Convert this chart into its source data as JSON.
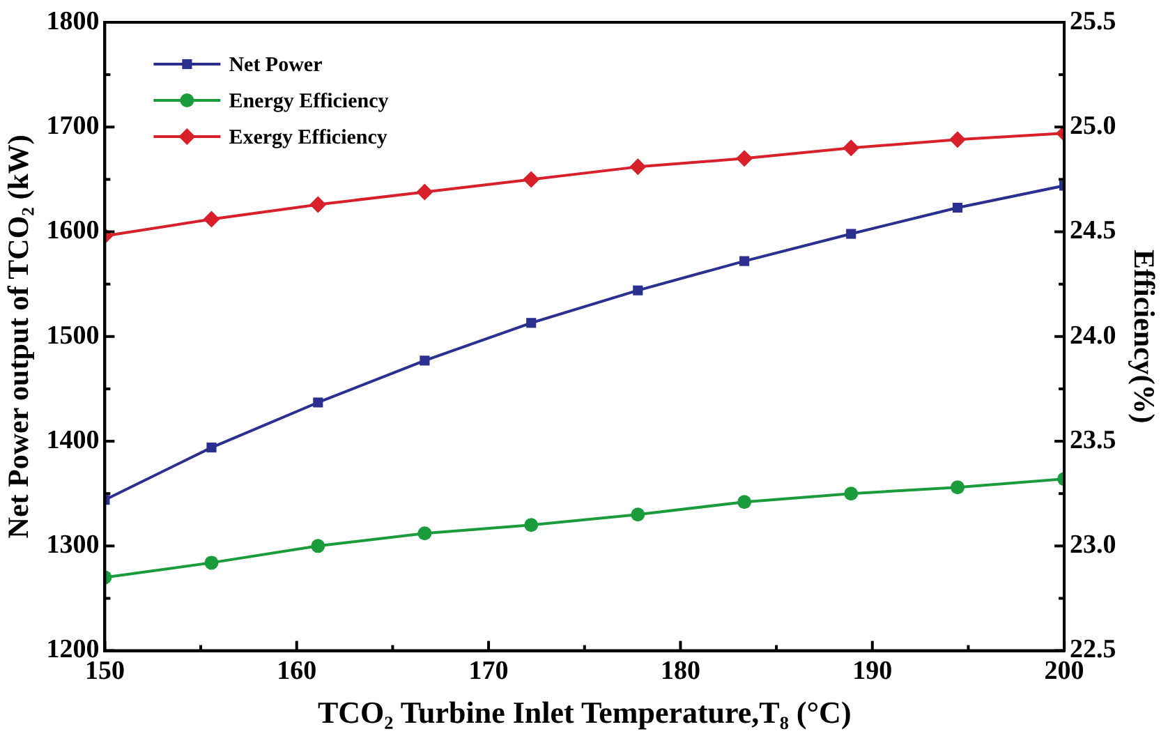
{
  "chart_data": {
    "type": "line",
    "xlabel": "TCO₂ Turbine Inlet Temperature,T₈ (°C)",
    "ylabel": "Net Power output of TCO₂ (kW)",
    "y2label": "Efficiency(%)",
    "x": [
      150,
      155.56,
      161.11,
      166.67,
      172.22,
      177.78,
      183.33,
      188.89,
      194.44,
      200
    ],
    "series": [
      {
        "name": "Net Power",
        "color": "#2b2f8f",
        "marker": "square",
        "values": [
          1344,
          1394,
          1437,
          1477,
          1513,
          1544,
          1572,
          1598,
          1623,
          1644
        ]
      },
      {
        "name": "Energy Efficiency",
        "color": "#1a9b3c",
        "marker": "circle",
        "axis": "y2",
        "values": [
          22.85,
          22.92,
          23.0,
          23.06,
          23.1,
          23.15,
          23.21,
          23.25,
          23.28,
          23.32
        ]
      },
      {
        "name": "Exergy Efficiency",
        "color": "#d8202a",
        "marker": "diamond",
        "axis": "y2",
        "values": [
          24.48,
          24.56,
          24.63,
          24.69,
          24.75,
          24.81,
          24.85,
          24.9,
          24.94,
          24.97
        ]
      }
    ],
    "xlim": [
      150,
      200
    ],
    "xticks": [
      150,
      {
        "value": 155,
        "label": null
      },
      160,
      {
        "value": 165,
        "label": null
      },
      170,
      {
        "value": 175,
        "label": null
      },
      180,
      {
        "value": 185,
        "label": null
      },
      190,
      {
        "value": 195,
        "label": null
      },
      200
    ],
    "ylim": [
      1200,
      1800
    ],
    "yticks": [
      1200,
      {
        "value": 1250,
        "label": null
      },
      1300,
      {
        "value": 1350,
        "label": null
      },
      1400,
      {
        "value": 1450,
        "label": null
      },
      1500,
      {
        "value": 1550,
        "label": null
      },
      1600,
      {
        "value": 1650,
        "label": null
      },
      1700,
      {
        "value": 1750,
        "label": null
      },
      1800
    ],
    "y2lim": [
      22.5,
      25.5
    ],
    "y2ticks": [
      {
        "value": 22.5,
        "label": "22.5"
      },
      {
        "value": 22.75,
        "label": null
      },
      {
        "value": 23,
        "label": "23.0"
      },
      {
        "value": 23.25,
        "label": null
      },
      {
        "value": 23.5,
        "label": "23.5"
      },
      {
        "value": 23.75,
        "label": null
      },
      {
        "value": 24,
        "label": "24.0"
      },
      {
        "value": 24.25,
        "label": null
      },
      {
        "value": 24.5,
        "label": "24.5"
      },
      {
        "value": 24.75,
        "label": null
      },
      {
        "value": 25,
        "label": "25.0"
      },
      {
        "value": 25.25,
        "label": null
      },
      {
        "value": 25.5,
        "label": "25.5"
      }
    ],
    "legend": "top left",
    "line_style": "solid"
  }
}
